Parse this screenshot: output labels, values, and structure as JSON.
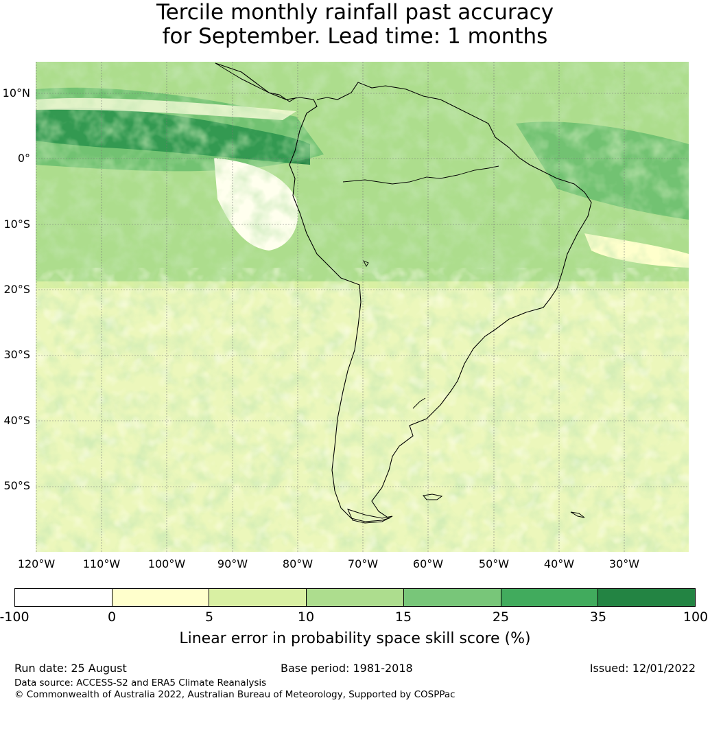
{
  "title_line1": "Tercile monthly rainfall past accuracy",
  "title_line2": "for September. Lead time: 1 months",
  "lat_labels": [
    "10°N",
    "0°",
    "10°S",
    "20°S",
    "30°S",
    "40°S",
    "50°S"
  ],
  "lon_labels": [
    "120°W",
    "110°W",
    "100°W",
    "90°W",
    "80°W",
    "70°W",
    "60°W",
    "50°W",
    "40°W",
    "30°W"
  ],
  "legend": {
    "ticks": [
      "-100",
      "0",
      "5",
      "10",
      "15",
      "25",
      "35",
      "100"
    ],
    "colors": [
      "#ffffff",
      "#ffffcc",
      "#d9f0a3",
      "#addd8e",
      "#78c679",
      "#41ab5d",
      "#238443"
    ],
    "label": "Linear error in probability space skill score (%)"
  },
  "footer": {
    "run_date": "Run date: 25 August",
    "base_period": "Base period: 1981-2018",
    "issued": "Issued: 12/01/2022",
    "data_source": "Data source: ACCESS-S2 and ERA5 Climate Reanalysis",
    "copyright": "© Commonwealth of Australia 2022, Australian Bureau of Meteorology, Supported by COSPPac"
  }
}
